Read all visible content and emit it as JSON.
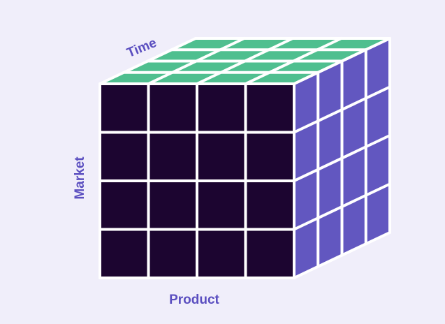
{
  "labels": {
    "time": "Time",
    "market": "Market",
    "product": "Product"
  }
}
